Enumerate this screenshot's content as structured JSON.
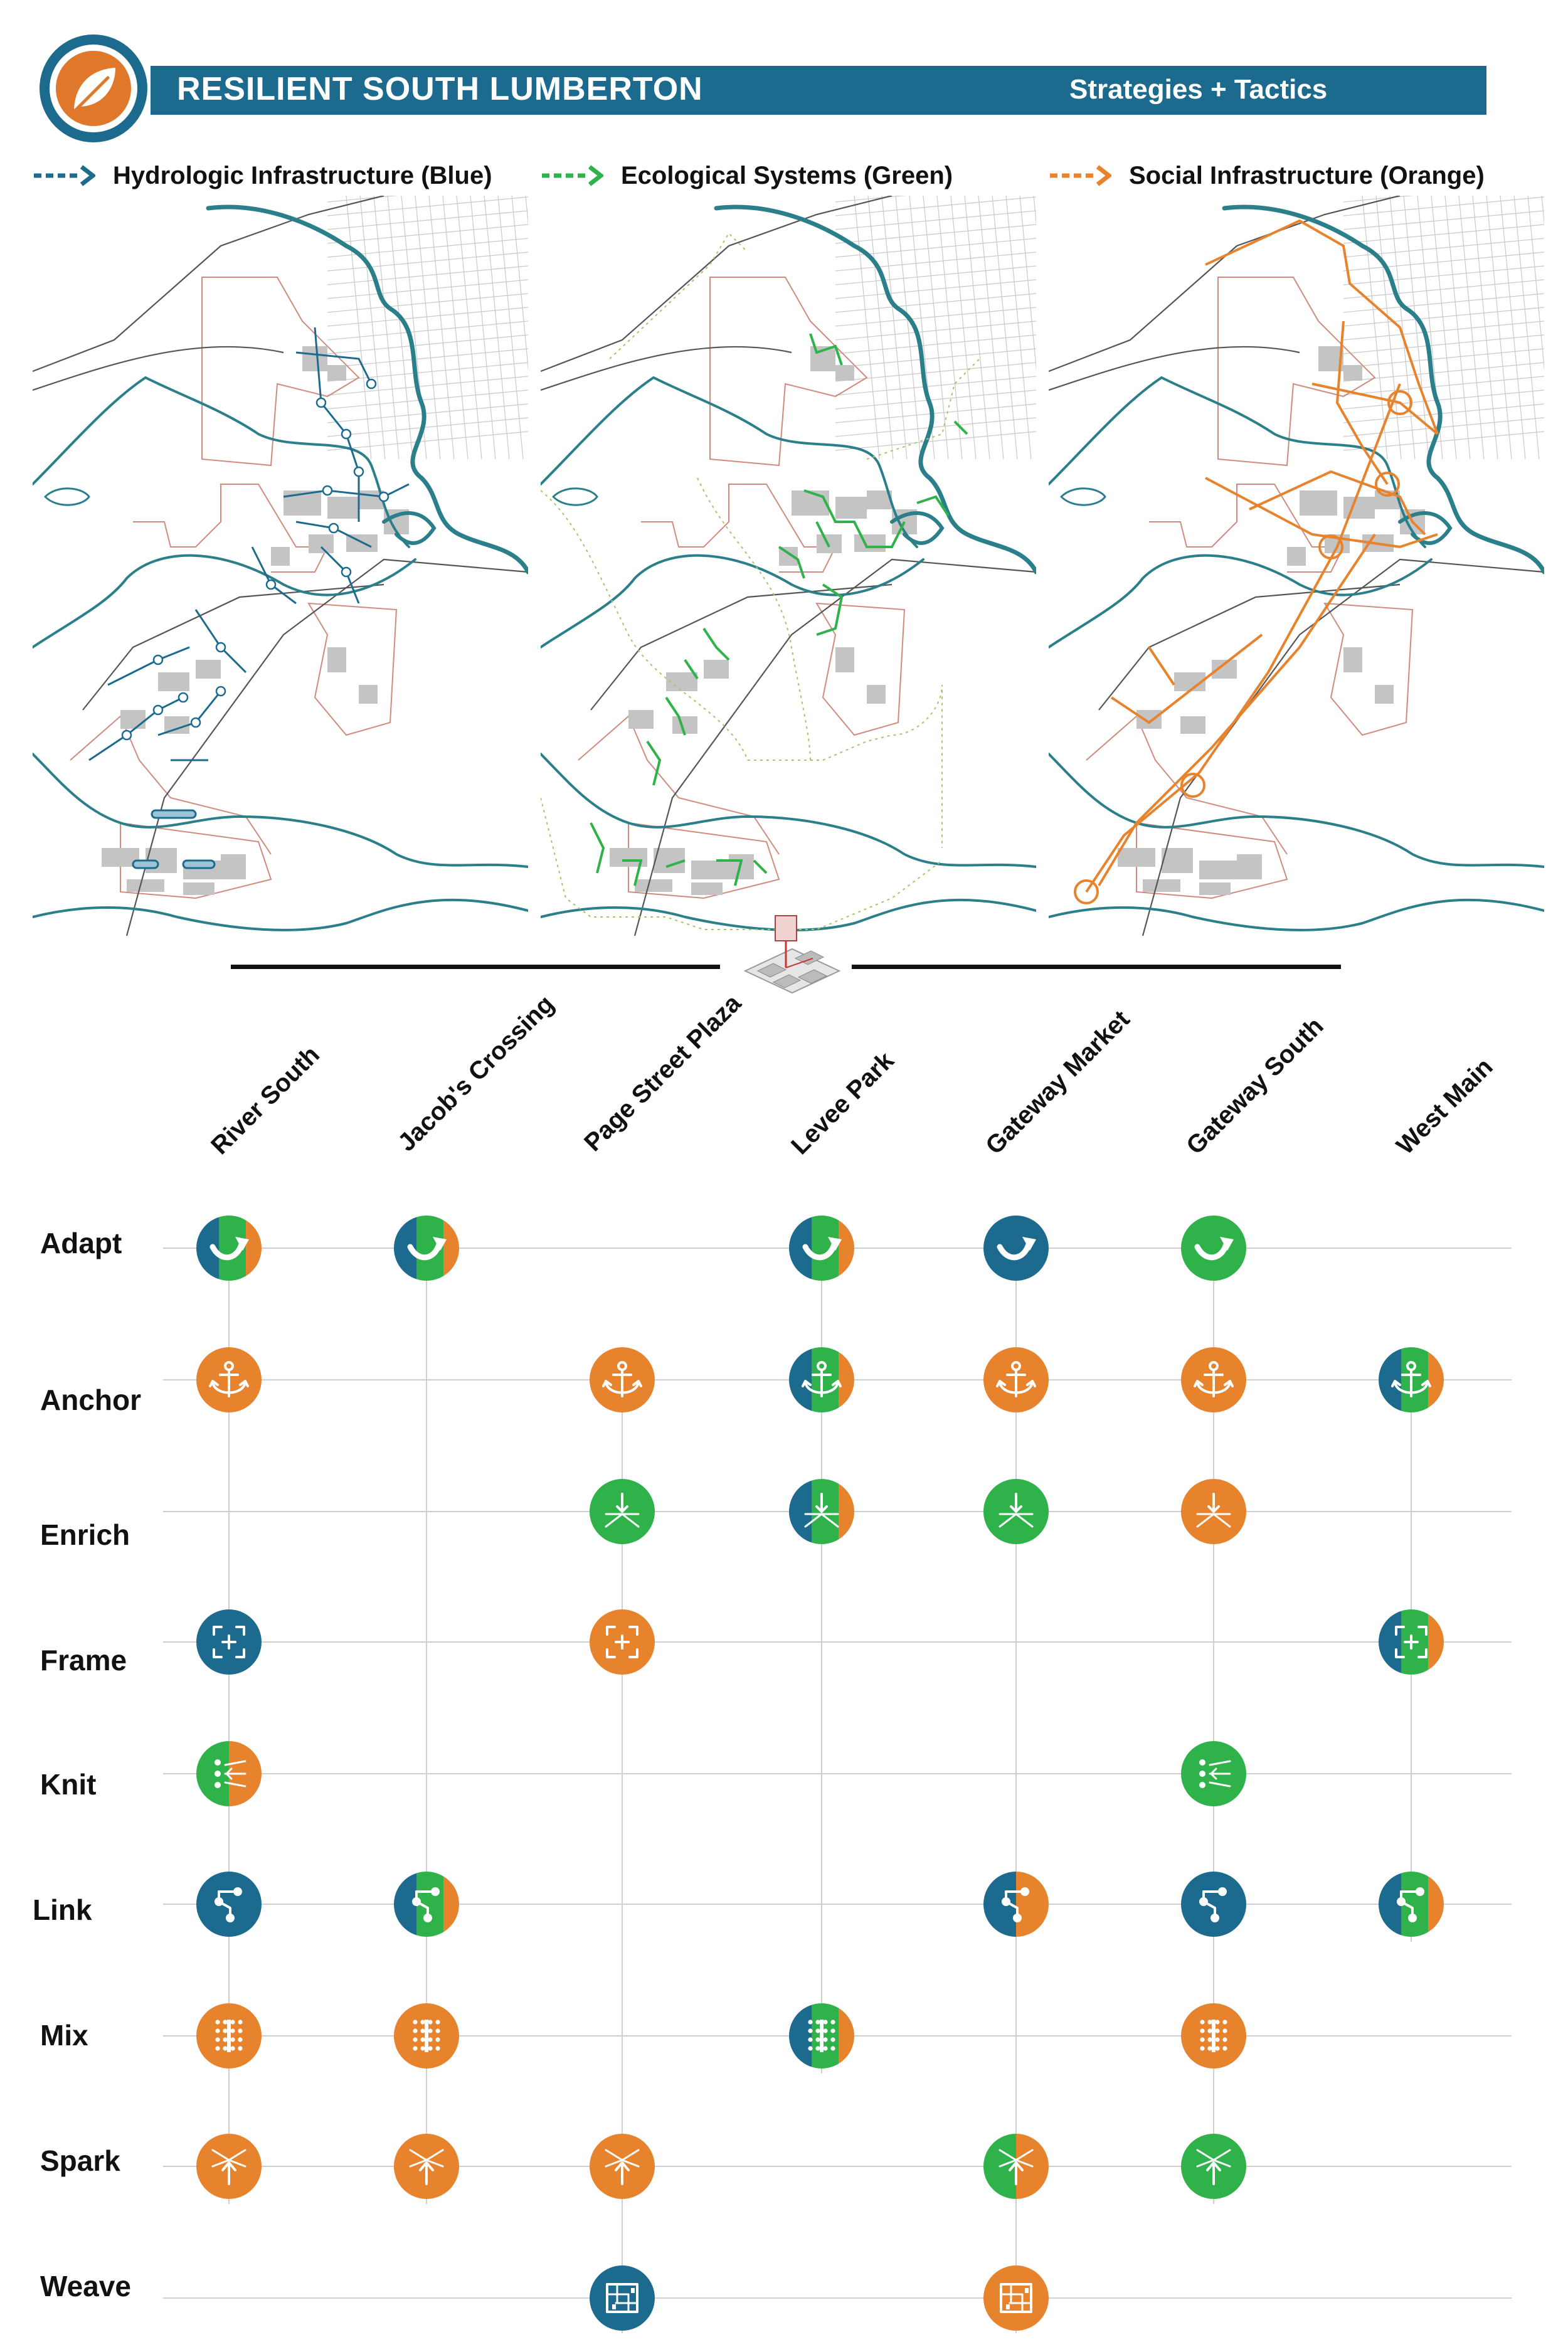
{
  "header": {
    "title": "RESILIENT SOUTH LUMBERTON",
    "subtitle": "Strategies + Tactics",
    "logo_icon": "leaf-icon",
    "bar_color": "#1c6b8e",
    "logo_color": "#e0782c"
  },
  "legend": [
    {
      "label": "Hydrologic Infrastructure (Blue)",
      "color": "#1c6b8e",
      "icon": "dashed-arrow-icon"
    },
    {
      "label": "Ecological Systems (Green)",
      "color": "#2fb24a",
      "icon": "dashed-arrow-icon"
    },
    {
      "label": "Social Infrastructure (Orange)",
      "color": "#e7832d",
      "icon": "dashed-arrow-icon"
    }
  ],
  "colors": {
    "blue": "#1c6b8e",
    "green": "#2fb24a",
    "orange": "#e7832d",
    "river": "#2b7f8a",
    "boundary": "#cf8b7d",
    "grid": "#cfcfcf"
  },
  "matrix": {
    "columns": [
      "River South",
      "Jacob's Crossing",
      "Page Street Plaza",
      "Levee Park",
      "Gateway Market",
      "Gateway South",
      "West Main"
    ],
    "rows": [
      "Adapt",
      "Anchor",
      "Enrich",
      "Frame",
      "Knit",
      "Link",
      "Mix",
      "Spark",
      "Weave"
    ],
    "cells": [
      {
        "row": "Adapt",
        "column": "River South",
        "icon": "adapt-icon",
        "colors": [
          "blue",
          "green",
          "orange"
        ]
      },
      {
        "row": "Adapt",
        "column": "Jacob's Crossing",
        "icon": "adapt-icon",
        "colors": [
          "blue",
          "green",
          "orange"
        ]
      },
      {
        "row": "Adapt",
        "column": "Levee Park",
        "icon": "adapt-icon",
        "colors": [
          "blue",
          "green",
          "orange"
        ]
      },
      {
        "row": "Adapt",
        "column": "Gateway Market",
        "icon": "adapt-icon",
        "colors": [
          "blue"
        ]
      },
      {
        "row": "Adapt",
        "column": "Gateway South",
        "icon": "adapt-icon",
        "colors": [
          "green"
        ]
      },
      {
        "row": "Anchor",
        "column": "River South",
        "icon": "anchor-icon",
        "colors": [
          "orange"
        ]
      },
      {
        "row": "Anchor",
        "column": "Page Street Plaza",
        "icon": "anchor-icon",
        "colors": [
          "orange"
        ]
      },
      {
        "row": "Anchor",
        "column": "Levee Park",
        "icon": "anchor-icon",
        "colors": [
          "blue",
          "green",
          "orange"
        ]
      },
      {
        "row": "Anchor",
        "column": "Gateway Market",
        "icon": "anchor-icon",
        "colors": [
          "orange"
        ]
      },
      {
        "row": "Anchor",
        "column": "Gateway South",
        "icon": "anchor-icon",
        "colors": [
          "orange"
        ]
      },
      {
        "row": "Anchor",
        "column": "West Main",
        "icon": "anchor-icon",
        "colors": [
          "blue",
          "green",
          "orange"
        ]
      },
      {
        "row": "Enrich",
        "column": "Page Street Plaza",
        "icon": "enrich-icon",
        "colors": [
          "green"
        ]
      },
      {
        "row": "Enrich",
        "column": "Levee Park",
        "icon": "enrich-icon",
        "colors": [
          "blue",
          "green",
          "orange"
        ]
      },
      {
        "row": "Enrich",
        "column": "Gateway Market",
        "icon": "enrich-icon",
        "colors": [
          "green"
        ]
      },
      {
        "row": "Enrich",
        "column": "Gateway South",
        "icon": "enrich-icon",
        "colors": [
          "orange"
        ]
      },
      {
        "row": "Frame",
        "column": "River South",
        "icon": "frame-icon",
        "colors": [
          "blue"
        ]
      },
      {
        "row": "Frame",
        "column": "Page Street Plaza",
        "icon": "frame-icon",
        "colors": [
          "orange"
        ]
      },
      {
        "row": "Frame",
        "column": "West Main",
        "icon": "frame-icon",
        "colors": [
          "blue",
          "green",
          "orange"
        ]
      },
      {
        "row": "Knit",
        "column": "River South",
        "icon": "knit-icon",
        "colors": [
          "green",
          "orange"
        ]
      },
      {
        "row": "Knit",
        "column": "Gateway South",
        "icon": "knit-icon",
        "colors": [
          "green"
        ]
      },
      {
        "row": "Link",
        "column": "River South",
        "icon": "link-icon",
        "colors": [
          "blue"
        ]
      },
      {
        "row": "Link",
        "column": "Jacob's Crossing",
        "icon": "link-icon",
        "colors": [
          "blue",
          "green",
          "orange"
        ]
      },
      {
        "row": "Link",
        "column": "Gateway Market",
        "icon": "link-icon",
        "colors": [
          "blue",
          "orange"
        ]
      },
      {
        "row": "Link",
        "column": "Gateway South",
        "icon": "link-icon",
        "colors": [
          "blue"
        ]
      },
      {
        "row": "Link",
        "column": "West Main",
        "icon": "link-icon",
        "colors": [
          "blue",
          "green",
          "orange"
        ]
      },
      {
        "row": "Mix",
        "column": "River South",
        "icon": "mix-icon",
        "colors": [
          "orange"
        ]
      },
      {
        "row": "Mix",
        "column": "Jacob's Crossing",
        "icon": "mix-icon",
        "colors": [
          "orange"
        ]
      },
      {
        "row": "Mix",
        "column": "Levee Park",
        "icon": "mix-icon",
        "colors": [
          "blue",
          "green",
          "orange"
        ]
      },
      {
        "row": "Mix",
        "column": "Gateway South",
        "icon": "mix-icon",
        "colors": [
          "orange"
        ]
      },
      {
        "row": "Spark",
        "column": "River South",
        "icon": "spark-icon",
        "colors": [
          "orange"
        ]
      },
      {
        "row": "Spark",
        "column": "Jacob's Crossing",
        "icon": "spark-icon",
        "colors": [
          "orange"
        ]
      },
      {
        "row": "Spark",
        "column": "Page Street Plaza",
        "icon": "spark-icon",
        "colors": [
          "orange"
        ]
      },
      {
        "row": "Spark",
        "column": "Gateway Market",
        "icon": "spark-icon",
        "colors": [
          "green",
          "orange"
        ]
      },
      {
        "row": "Spark",
        "column": "Gateway South",
        "icon": "spark-icon",
        "colors": [
          "green"
        ]
      },
      {
        "row": "Weave",
        "column": "Page Street Plaza",
        "icon": "weave-icon",
        "colors": [
          "blue"
        ]
      },
      {
        "row": "Weave",
        "column": "Gateway Market",
        "icon": "weave-icon",
        "colors": [
          "orange"
        ]
      }
    ]
  }
}
